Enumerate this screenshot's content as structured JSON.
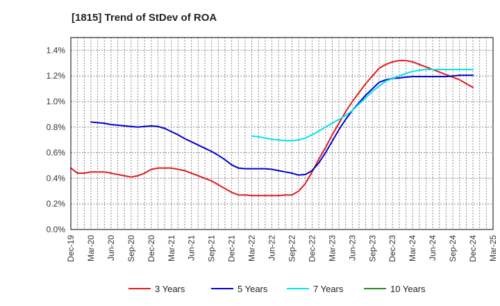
{
  "chart_data": {
    "type": "line",
    "title": "[1815]  Trend of StDev of ROA",
    "xlabel": "",
    "ylabel": "",
    "x_tick_labels": [
      "Dec-19",
      "Mar-20",
      "Jun-20",
      "Sep-20",
      "Dec-20",
      "Mar-21",
      "Jun-21",
      "Sep-21",
      "Dec-21",
      "Mar-22",
      "Jun-22",
      "Sep-22",
      "Dec-22",
      "Mar-23",
      "Jun-23",
      "Sep-23",
      "Dec-23",
      "Mar-24",
      "Jun-24",
      "Sep-24",
      "Dec-24",
      "Mar-25"
    ],
    "y_tick_labels": [
      "0.0%",
      "0.2%",
      "0.4%",
      "0.6%",
      "0.8%",
      "1.0%",
      "1.2%",
      "1.4%"
    ],
    "ylim": [
      0,
      1.5
    ],
    "y_unit": "%",
    "grid": true,
    "legend_position": "bottom",
    "series": [
      {
        "name": "3 Years",
        "color": "#e31a1c",
        "x": [
          "Dec-19",
          "Jan-20",
          "Feb-20",
          "Mar-20",
          "Apr-20",
          "May-20",
          "Jun-20",
          "Jul-20",
          "Aug-20",
          "Sep-20",
          "Oct-20",
          "Nov-20",
          "Dec-20",
          "Jan-21",
          "Feb-21",
          "Mar-21",
          "Apr-21",
          "May-21",
          "Jun-21",
          "Jul-21",
          "Aug-21",
          "Sep-21",
          "Oct-21",
          "Nov-21",
          "Dec-21",
          "Jan-22",
          "Feb-22",
          "Mar-22",
          "Apr-22",
          "May-22",
          "Jun-22",
          "Jul-22",
          "Aug-22",
          "Sep-22",
          "Oct-22",
          "Nov-22",
          "Dec-22",
          "Jan-23",
          "Feb-23",
          "Mar-23",
          "Apr-23",
          "May-23",
          "Jun-23",
          "Jul-23",
          "Aug-23",
          "Sep-23",
          "Oct-23",
          "Nov-23",
          "Dec-23",
          "Jan-24",
          "Feb-24",
          "Mar-24",
          "Apr-24",
          "May-24",
          "Jun-24",
          "Jul-24",
          "Aug-24",
          "Sep-24",
          "Oct-24",
          "Nov-24",
          "Dec-24"
        ],
        "values": [
          0.48,
          0.44,
          0.44,
          0.45,
          0.45,
          0.45,
          0.44,
          0.43,
          0.42,
          0.41,
          0.42,
          0.44,
          0.47,
          0.48,
          0.48,
          0.48,
          0.47,
          0.46,
          0.44,
          0.42,
          0.4,
          0.38,
          0.35,
          0.32,
          0.29,
          0.27,
          0.27,
          0.265,
          0.265,
          0.265,
          0.265,
          0.265,
          0.27,
          0.27,
          0.3,
          0.36,
          0.45,
          0.55,
          0.64,
          0.74,
          0.83,
          0.92,
          1.0,
          1.07,
          1.14,
          1.2,
          1.26,
          1.29,
          1.31,
          1.32,
          1.32,
          1.31,
          1.29,
          1.27,
          1.25,
          1.23,
          1.21,
          1.19,
          1.17,
          1.14,
          1.11
        ]
      },
      {
        "name": "5 Years",
        "color": "#0000cc",
        "x": [
          "Mar-20",
          "Apr-20",
          "May-20",
          "Jun-20",
          "Jul-20",
          "Aug-20",
          "Sep-20",
          "Oct-20",
          "Nov-20",
          "Dec-20",
          "Jan-21",
          "Feb-21",
          "Mar-21",
          "Apr-21",
          "May-21",
          "Jun-21",
          "Jul-21",
          "Aug-21",
          "Sep-21",
          "Oct-21",
          "Nov-21",
          "Dec-21",
          "Jan-22",
          "Feb-22",
          "Mar-22",
          "Apr-22",
          "May-22",
          "Jun-22",
          "Jul-22",
          "Aug-22",
          "Sep-22",
          "Oct-22",
          "Nov-22",
          "Dec-22",
          "Jan-23",
          "Feb-23",
          "Mar-23",
          "Apr-23",
          "May-23",
          "Jun-23",
          "Jul-23",
          "Aug-23",
          "Sep-23",
          "Oct-23",
          "Nov-23",
          "Dec-23",
          "Jan-24",
          "Feb-24",
          "Mar-24",
          "Apr-24",
          "May-24",
          "Jun-24",
          "Jul-24",
          "Aug-24",
          "Sep-24",
          "Oct-24",
          "Nov-24",
          "Dec-24"
        ],
        "values": [
          0.84,
          0.835,
          0.83,
          0.82,
          0.815,
          0.81,
          0.805,
          0.8,
          0.805,
          0.81,
          0.805,
          0.79,
          0.765,
          0.74,
          0.71,
          0.685,
          0.66,
          0.635,
          0.61,
          0.58,
          0.545,
          0.505,
          0.48,
          0.475,
          0.475,
          0.475,
          0.475,
          0.47,
          0.46,
          0.45,
          0.44,
          0.425,
          0.43,
          0.46,
          0.52,
          0.6,
          0.69,
          0.78,
          0.86,
          0.93,
          0.99,
          1.05,
          1.1,
          1.15,
          1.17,
          1.18,
          1.185,
          1.19,
          1.195,
          1.195,
          1.195,
          1.195,
          1.195,
          1.195,
          1.2,
          1.205,
          1.205,
          1.205
        ]
      },
      {
        "name": "7 Years",
        "color": "#00e5ee",
        "x": [
          "Mar-22",
          "Apr-22",
          "May-22",
          "Jun-22",
          "Jul-22",
          "Aug-22",
          "Sep-22",
          "Oct-22",
          "Nov-22",
          "Dec-22",
          "Jan-23",
          "Feb-23",
          "Mar-23",
          "Apr-23",
          "May-23",
          "Jun-23",
          "Jul-23",
          "Aug-23",
          "Sep-23",
          "Oct-23",
          "Nov-23",
          "Dec-23",
          "Jan-24",
          "Feb-24",
          "Mar-24",
          "Apr-24",
          "May-24",
          "Jun-24",
          "Jul-24",
          "Aug-24",
          "Sep-24",
          "Oct-24",
          "Nov-24",
          "Dec-24"
        ],
        "values": [
          0.73,
          0.725,
          0.715,
          0.705,
          0.7,
          0.695,
          0.695,
          0.7,
          0.715,
          0.74,
          0.77,
          0.8,
          0.83,
          0.86,
          0.89,
          0.93,
          0.98,
          1.03,
          1.08,
          1.12,
          1.16,
          1.18,
          1.2,
          1.22,
          1.235,
          1.245,
          1.25,
          1.25,
          1.25,
          1.25,
          1.25,
          1.25,
          1.25,
          1.25
        ]
      },
      {
        "name": "10 Years",
        "color": "#228b22",
        "x": [],
        "values": []
      }
    ]
  }
}
